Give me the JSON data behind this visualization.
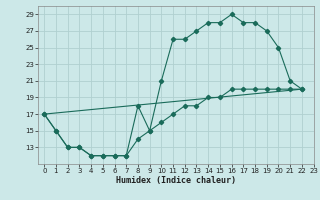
{
  "xlabel": "Humidex (Indice chaleur)",
  "bg_color": "#cce8e8",
  "grid_color": "#b0d0d0",
  "line_color": "#1a6b5a",
  "xlim": [
    -0.5,
    23
  ],
  "ylim": [
    11,
    30
  ],
  "yticks": [
    13,
    15,
    17,
    19,
    21,
    23,
    25,
    27,
    29
  ],
  "xticks": [
    0,
    1,
    2,
    3,
    4,
    5,
    6,
    7,
    8,
    9,
    10,
    11,
    12,
    13,
    14,
    15,
    16,
    17,
    18,
    19,
    20,
    21,
    22,
    23
  ],
  "line1_x": [
    0,
    1,
    2,
    3,
    4,
    5,
    6,
    7,
    8,
    9,
    10,
    11,
    12,
    13,
    14,
    15,
    16,
    17,
    18,
    19,
    20,
    21,
    22
  ],
  "line1_y": [
    17,
    15,
    13,
    13,
    12,
    12,
    12,
    12,
    18,
    15,
    21,
    26,
    26,
    27,
    28,
    28,
    29,
    28,
    28,
    27,
    25,
    21,
    20
  ],
  "line2_x": [
    0,
    1,
    2,
    3,
    4,
    5,
    6,
    7,
    8,
    9,
    10,
    11,
    12,
    13,
    14,
    15,
    16,
    17,
    18,
    19,
    20,
    21,
    22
  ],
  "line2_y": [
    17,
    15,
    13,
    13,
    12,
    12,
    12,
    12,
    14,
    15,
    16,
    17,
    18,
    18,
    19,
    19,
    20,
    20,
    20,
    20,
    20,
    20,
    20
  ],
  "line3_x": [
    0,
    22
  ],
  "line3_y": [
    17,
    20
  ],
  "xlabel_fontsize": 6,
  "tick_fontsize": 5
}
